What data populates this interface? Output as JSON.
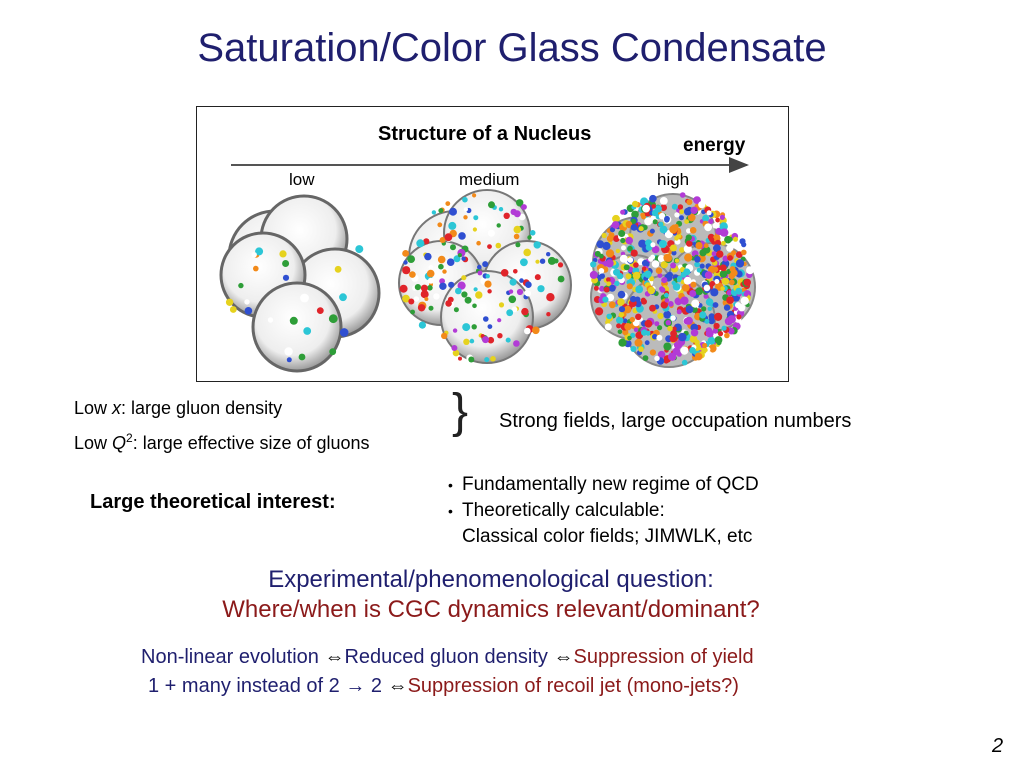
{
  "slide": {
    "title": "Saturation/Color Glass Condensate",
    "page_number": "2"
  },
  "figure": {
    "title": "Structure of a Nucleus",
    "axis_label": "energy",
    "stage_low": "low",
    "stage_medium": "medium",
    "stage_high": "high"
  },
  "left_block": {
    "line1_pre": "Low ",
    "line1_var": "x",
    "line1_post": ": large gluon density",
    "line2_pre": "Low ",
    "line2_var": "Q",
    "line2_sup": "2",
    "line2_post": ": large effective size of gluons",
    "interest_label": "Large theoretical interest:"
  },
  "right_block": {
    "brace_text": "Strong fields, large occupation numbers",
    "bullets": [
      "Fundamentally new regime of QCD",
      "Theoretically calculable:"
    ],
    "bullet2_continuation": "Classical color fields; JIMWLK, etc"
  },
  "question": {
    "line1": "Experimental/phenomenological question:",
    "line2": "Where/when is CGC dynamics relevant/dominant?"
  },
  "bottom": {
    "row1_a": "Non-linear evolution ",
    "row1_arrow1": "⇔",
    "row1_b": "Reduced gluon density ",
    "row1_arrow2": "⇔",
    "row1_c": "Suppression of yield",
    "row2_a": "1 + many instead of 2 → 2  ",
    "row2_arrow": "⇔",
    "row2_c": "Suppression of recoil jet (mono-jets?)"
  },
  "colors": {
    "title": "#1f1f6e",
    "accent_red": "#8b1a1a"
  }
}
